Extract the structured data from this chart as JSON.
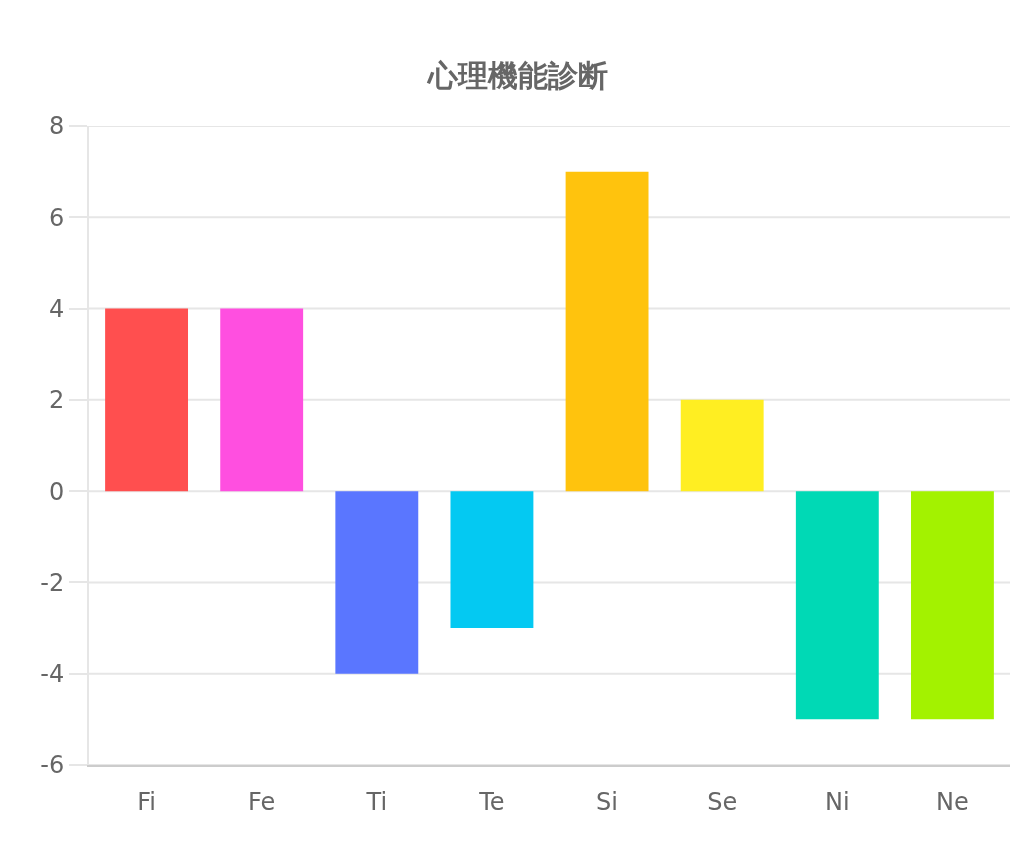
{
  "chart_data": {
    "type": "bar",
    "title": "心理機能診断",
    "categories": [
      "Fi",
      "Fe",
      "Ti",
      "Te",
      "Si",
      "Se",
      "Ni",
      "Ne"
    ],
    "values": [
      4,
      4,
      -4,
      -3,
      7,
      2,
      -5,
      -5
    ],
    "colors": [
      "#ff4f4f",
      "#ff4fe0",
      "#5a76ff",
      "#04c9f2",
      "#ffc30d",
      "#ffee22",
      "#00d9b5",
      "#a3f200"
    ],
    "ylim": [
      -6,
      8
    ],
    "yticks": [
      -6,
      -4,
      -2,
      0,
      2,
      4,
      6,
      8
    ],
    "grid": "y"
  }
}
